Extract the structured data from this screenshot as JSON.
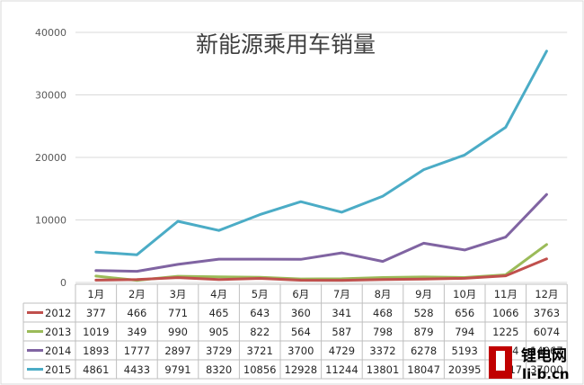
{
  "chart_data": {
    "type": "line",
    "title": "新能源乘用车销量",
    "categories": [
      "1月",
      "2月",
      "3月",
      "4月",
      "5月",
      "6月",
      "7月",
      "8月",
      "9月",
      "10月",
      "11月",
      "12月"
    ],
    "ylim": [
      0,
      40000
    ],
    "yticks": [
      "0",
      "10000",
      "20000",
      "30000",
      "40000"
    ],
    "grid": true,
    "legend": "table-bottom",
    "series": [
      {
        "name": "2012",
        "color": "#c0504d",
        "values": [
          377,
          466,
          771,
          465,
          643,
          360,
          341,
          468,
          528,
          656,
          1066,
          3763
        ]
      },
      {
        "name": "2013",
        "color": "#9bbb59",
        "values": [
          1019,
          349,
          990,
          905,
          822,
          564,
          587,
          798,
          879,
          794,
          1225,
          6074
        ]
      },
      {
        "name": "2014",
        "color": "#8064a2",
        "values": [
          1893,
          1777,
          2897,
          3729,
          3721,
          3700,
          4729,
          3372,
          6278,
          5193,
          7254,
          14067
        ]
      },
      {
        "name": "2015",
        "color": "#4bacc6",
        "values": [
          4861,
          4433,
          9791,
          8320,
          10856,
          12928,
          11244,
          13801,
          18047,
          20395,
          24817,
          37000
        ]
      }
    ]
  },
  "watermark": {
    "brand": "锂电网",
    "domain": "li-b.cn",
    "color": "#c00000"
  }
}
